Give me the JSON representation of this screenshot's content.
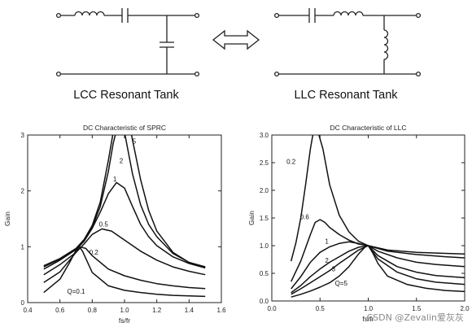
{
  "top": {
    "lcc_caption": "LCC Resonant Tank",
    "llc_caption": "LLC Resonant Tank"
  },
  "icons": {
    "swap": "double-headed-arrow-icon",
    "inductor": "inductor-icon",
    "capacitor": "capacitor-icon"
  },
  "chart_data": [
    {
      "type": "line",
      "title": "DC Characteristic of SPRC",
      "xlabel": "fs/fr",
      "ylabel": "Gain",
      "xlim": [
        0.4,
        1.6
      ],
      "ylim": [
        0,
        3
      ],
      "xticks": [
        "0.4",
        "0.6",
        "0.8",
        "1.0",
        "1.2",
        "1.4",
        "1.6"
      ],
      "yticks": [
        "0",
        "1",
        "2",
        "3"
      ],
      "grid": false,
      "series": [
        {
          "name": "5",
          "label_at": [
            1.06,
            2.85
          ],
          "points": [
            [
              0.5,
              0.66
            ],
            [
              0.6,
              0.79
            ],
            [
              0.7,
              0.97
            ],
            [
              0.75,
              1.13
            ],
            [
              0.8,
              1.38
            ],
            [
              0.85,
              1.8
            ],
            [
              0.9,
              2.55
            ],
            [
              0.93,
              3.05
            ],
            [
              1.0,
              3.3
            ],
            [
              1.04,
              3.05
            ],
            [
              1.1,
              2.2
            ],
            [
              1.15,
              1.65
            ],
            [
              1.2,
              1.28
            ],
            [
              1.3,
              0.9
            ],
            [
              1.4,
              0.72
            ],
            [
              1.5,
              0.64
            ]
          ]
        },
        {
          "name": "2",
          "label_at": [
            0.98,
            2.5
          ],
          "points": [
            [
              0.5,
              0.64
            ],
            [
              0.6,
              0.78
            ],
            [
              0.7,
              0.97
            ],
            [
              0.75,
              1.12
            ],
            [
              0.8,
              1.35
            ],
            [
              0.85,
              1.72
            ],
            [
              0.9,
              2.35
            ],
            [
              0.93,
              2.85
            ],
            [
              0.96,
              3.2
            ],
            [
              1.0,
              3.05
            ],
            [
              1.05,
              2.3
            ],
            [
              1.1,
              1.75
            ],
            [
              1.15,
              1.4
            ],
            [
              1.2,
              1.18
            ],
            [
              1.3,
              0.88
            ],
            [
              1.4,
              0.72
            ],
            [
              1.5,
              0.64
            ]
          ]
        },
        {
          "name": "1",
          "label_at": [
            0.94,
            2.17
          ],
          "points": [
            [
              0.5,
              0.6
            ],
            [
              0.6,
              0.76
            ],
            [
              0.7,
              0.95
            ],
            [
              0.75,
              1.1
            ],
            [
              0.8,
              1.33
            ],
            [
              0.85,
              1.62
            ],
            [
              0.9,
              1.95
            ],
            [
              0.95,
              2.15
            ],
            [
              1.0,
              2.05
            ],
            [
              1.05,
              1.72
            ],
            [
              1.1,
              1.4
            ],
            [
              1.15,
              1.18
            ],
            [
              1.2,
              1.02
            ],
            [
              1.3,
              0.82
            ],
            [
              1.4,
              0.7
            ],
            [
              1.5,
              0.62
            ]
          ]
        },
        {
          "name": "0.5",
          "label_at": [
            0.87,
            1.36
          ],
          "points": [
            [
              0.5,
              0.5
            ],
            [
              0.6,
              0.68
            ],
            [
              0.7,
              0.9
            ],
            [
              0.75,
              1.05
            ],
            [
              0.8,
              1.22
            ],
            [
              0.86,
              1.32
            ],
            [
              0.92,
              1.28
            ],
            [
              1.0,
              1.12
            ],
            [
              1.1,
              0.92
            ],
            [
              1.2,
              0.76
            ],
            [
              1.3,
              0.64
            ],
            [
              1.4,
              0.56
            ],
            [
              1.5,
              0.5
            ]
          ]
        },
        {
          "name": "0.2",
          "label_at": [
            0.81,
            0.86
          ],
          "points": [
            [
              0.5,
              0.36
            ],
            [
              0.6,
              0.55
            ],
            [
              0.7,
              0.9
            ],
            [
              0.72,
              1.0
            ],
            [
              0.76,
              0.97
            ],
            [
              0.8,
              0.84
            ],
            [
              0.9,
              0.6
            ],
            [
              1.0,
              0.48
            ],
            [
              1.1,
              0.4
            ],
            [
              1.2,
              0.34
            ],
            [
              1.3,
              0.3
            ],
            [
              1.4,
              0.27
            ],
            [
              1.5,
              0.25
            ]
          ]
        },
        {
          "name": "Q=0.1",
          "label_at": [
            0.7,
            0.16
          ],
          "points": [
            [
              0.5,
              0.18
            ],
            [
              0.6,
              0.42
            ],
            [
              0.66,
              0.72
            ],
            [
              0.7,
              0.94
            ],
            [
              0.72,
              1.0
            ],
            [
              0.74,
              0.92
            ],
            [
              0.8,
              0.54
            ],
            [
              0.9,
              0.3
            ],
            [
              1.0,
              0.22
            ],
            [
              1.1,
              0.18
            ],
            [
              1.2,
              0.15
            ],
            [
              1.3,
              0.13
            ],
            [
              1.4,
              0.12
            ],
            [
              1.5,
              0.11
            ]
          ]
        }
      ]
    },
    {
      "type": "line",
      "title": "DC Characteristic of LLC",
      "xlabel": "fs/fr",
      "ylabel": "Gain",
      "xlim": [
        0.0,
        2.0
      ],
      "ylim": [
        0.0,
        3.0
      ],
      "xticks": [
        "0.0",
        "0.5",
        "1.0",
        "1.5",
        "2.0"
      ],
      "yticks": [
        "0.0",
        "0.5",
        "1.0",
        "1.5",
        "2.0",
        "2.5",
        "3.0"
      ],
      "grid": false,
      "series": [
        {
          "name": "0.2",
          "label_at": [
            0.2,
            2.48
          ],
          "points": [
            [
              0.2,
              0.72
            ],
            [
              0.25,
              1.05
            ],
            [
              0.3,
              1.5
            ],
            [
              0.35,
              2.1
            ],
            [
              0.4,
              2.75
            ],
            [
              0.43,
              3.05
            ],
            [
              0.48,
              3.05
            ],
            [
              0.53,
              2.75
            ],
            [
              0.6,
              2.1
            ],
            [
              0.7,
              1.55
            ],
            [
              0.8,
              1.25
            ],
            [
              0.9,
              1.08
            ],
            [
              1.0,
              1.0
            ],
            [
              1.2,
              0.92
            ],
            [
              1.5,
              0.88
            ],
            [
              1.8,
              0.86
            ],
            [
              2.0,
              0.85
            ]
          ]
        },
        {
          "name": "0.6",
          "label_at": [
            0.34,
            1.48
          ],
          "points": [
            [
              0.2,
              0.35
            ],
            [
              0.3,
              0.72
            ],
            [
              0.4,
              1.2
            ],
            [
              0.45,
              1.42
            ],
            [
              0.5,
              1.47
            ],
            [
              0.55,
              1.42
            ],
            [
              0.6,
              1.33
            ],
            [
              0.7,
              1.2
            ],
            [
              0.8,
              1.1
            ],
            [
              0.9,
              1.03
            ],
            [
              1.0,
              1.0
            ],
            [
              1.2,
              0.9
            ],
            [
              1.5,
              0.84
            ],
            [
              1.8,
              0.8
            ],
            [
              2.0,
              0.78
            ]
          ]
        },
        {
          "name": "1",
          "label_at": [
            0.57,
            1.04
          ],
          "points": [
            [
              0.2,
              0.22
            ],
            [
              0.3,
              0.44
            ],
            [
              0.4,
              0.7
            ],
            [
              0.5,
              0.88
            ],
            [
              0.6,
              0.98
            ],
            [
              0.7,
              1.04
            ],
            [
              0.8,
              1.07
            ],
            [
              0.9,
              1.04
            ],
            [
              1.0,
              1.0
            ],
            [
              1.1,
              0.9
            ],
            [
              1.3,
              0.78
            ],
            [
              1.5,
              0.7
            ],
            [
              1.7,
              0.66
            ],
            [
              2.0,
              0.62
            ]
          ]
        },
        {
          "name": "2",
          "label_at": [
            0.57,
            0.69
          ],
          "points": [
            [
              0.2,
              0.15
            ],
            [
              0.3,
              0.28
            ],
            [
              0.4,
              0.44
            ],
            [
              0.5,
              0.58
            ],
            [
              0.6,
              0.7
            ],
            [
              0.7,
              0.8
            ],
            [
              0.8,
              0.9
            ],
            [
              0.9,
              0.97
            ],
            [
              1.0,
              1.0
            ],
            [
              1.1,
              0.82
            ],
            [
              1.3,
              0.62
            ],
            [
              1.5,
              0.52
            ],
            [
              1.7,
              0.46
            ],
            [
              2.0,
              0.42
            ]
          ]
        },
        {
          "name": "3",
          "label_at": [
            0.64,
            0.54
          ],
          "points": [
            [
              0.2,
              0.12
            ],
            [
              0.3,
              0.22
            ],
            [
              0.4,
              0.33
            ],
            [
              0.5,
              0.44
            ],
            [
              0.6,
              0.55
            ],
            [
              0.7,
              0.68
            ],
            [
              0.8,
              0.8
            ],
            [
              0.9,
              0.92
            ],
            [
              1.0,
              1.0
            ],
            [
              1.1,
              0.76
            ],
            [
              1.3,
              0.52
            ],
            [
              1.5,
              0.4
            ],
            [
              1.7,
              0.34
            ],
            [
              2.0,
              0.3
            ]
          ]
        },
        {
          "name": "Q=5",
          "label_at": [
            0.72,
            0.28
          ],
          "points": [
            [
              0.2,
              0.07
            ],
            [
              0.3,
              0.12
            ],
            [
              0.4,
              0.18
            ],
            [
              0.5,
              0.25
            ],
            [
              0.6,
              0.33
            ],
            [
              0.7,
              0.45
            ],
            [
              0.8,
              0.62
            ],
            [
              0.9,
              0.85
            ],
            [
              0.97,
              0.98
            ],
            [
              1.0,
              1.0
            ],
            [
              1.05,
              0.86
            ],
            [
              1.1,
              0.68
            ],
            [
              1.2,
              0.45
            ],
            [
              1.4,
              0.3
            ],
            [
              1.6,
              0.23
            ],
            [
              1.8,
              0.19
            ],
            [
              2.0,
              0.17
            ]
          ]
        }
      ]
    }
  ],
  "watermark": "CSDN @Zevalin爱灰灰"
}
